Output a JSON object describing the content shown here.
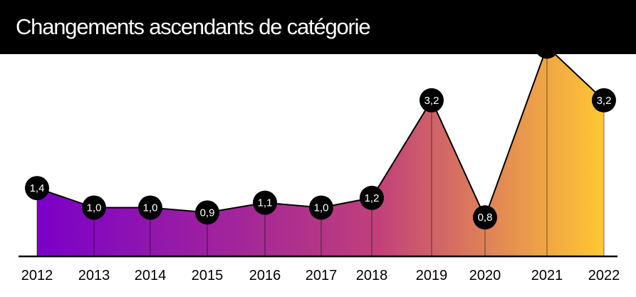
{
  "title": "Changements ascendants de catégorie",
  "colors": {
    "title_bar": "#000000",
    "title_text": "#ffffff",
    "gradient_start": "#7a00c8",
    "gradient_mid": "#c0407a",
    "gradient_end": "#ffc832",
    "line": "#000000",
    "marker": "#000000",
    "marker_text": "#ffffff"
  },
  "chart_data": {
    "type": "area",
    "x": [
      "2012",
      "2013",
      "2014",
      "2015",
      "2016",
      "2017",
      "2018",
      "2019",
      "2020",
      "2021",
      "2022"
    ],
    "values": [
      1.4,
      1.0,
      1.0,
      0.9,
      1.1,
      1.0,
      1.2,
      3.2,
      0.8,
      4.3,
      3.2
    ],
    "data_labels": [
      "1,4",
      "1,0",
      "1,0",
      "0,9",
      "1,1",
      "1,0",
      "1,2",
      "3,2",
      "0,8",
      "4,3",
      "3,2"
    ],
    "ylim": [
      0,
      4.6
    ],
    "xlabel": "",
    "ylabel": "",
    "grid": false,
    "legend": "none"
  }
}
